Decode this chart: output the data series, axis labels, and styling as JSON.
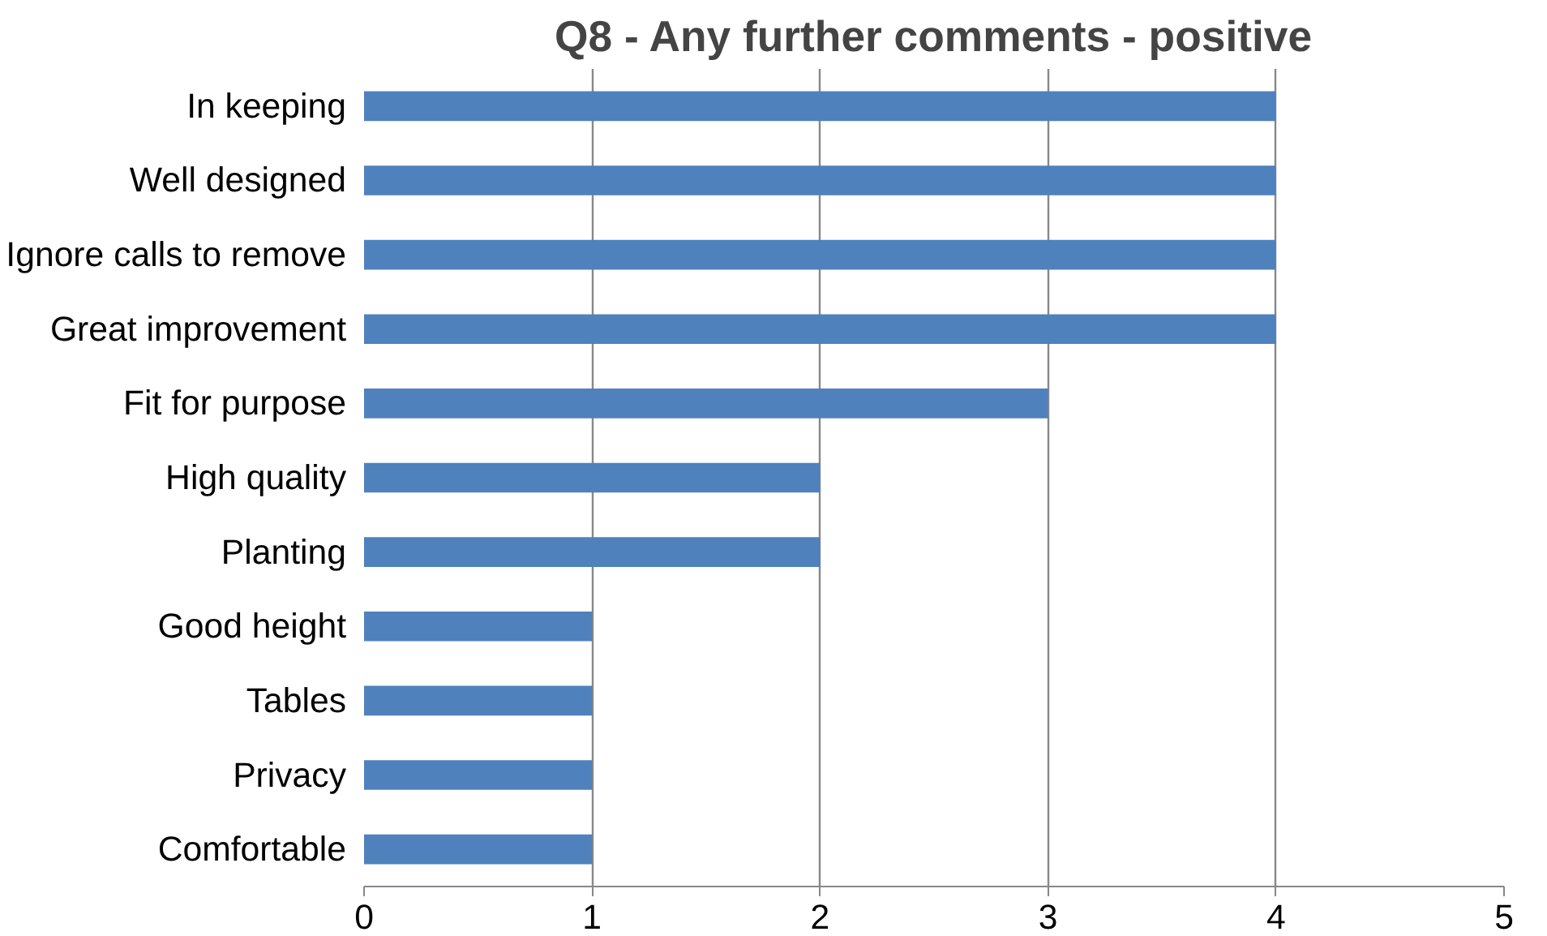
{
  "chart_data": {
    "type": "bar",
    "orientation": "horizontal",
    "title": "Q8 - Any further comments - positive",
    "categories": [
      "In keeping",
      "Well designed",
      "Ignore calls to remove",
      "Great improvement",
      "Fit for purpose",
      "High quality",
      "Planting",
      "Good height",
      "Tables",
      "Privacy",
      "Comfortable"
    ],
    "values": [
      4,
      4,
      4,
      4,
      3,
      2,
      2,
      1,
      1,
      1,
      1
    ],
    "color": "#4f81bd",
    "xlim": [
      0,
      5
    ],
    "xticks": [
      0,
      1,
      2,
      3,
      4,
      5
    ],
    "grid": "x"
  }
}
